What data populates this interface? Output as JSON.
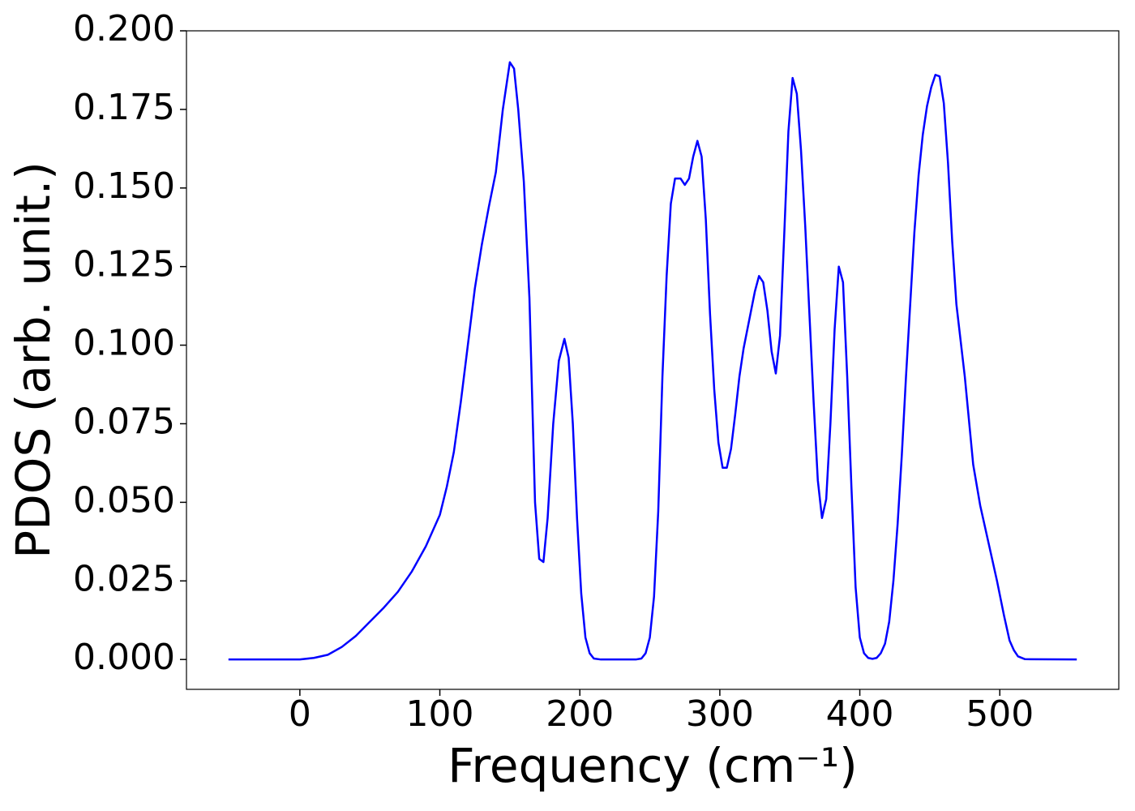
{
  "chart_data": {
    "type": "line",
    "xlabel": "Frequency (cm⁻¹)",
    "ylabel": "PDOS (arb. unit.)",
    "xlim": [
      -81,
      585
    ],
    "ylim": [
      -0.0095,
      0.2
    ],
    "xticks": [
      0,
      100,
      200,
      300,
      400,
      500
    ],
    "yticks": [
      {
        "value": 0,
        "label": "0.000"
      },
      {
        "value": 0.025,
        "label": "0.025"
      },
      {
        "value": 0.05,
        "label": "0.050"
      },
      {
        "value": 0.075,
        "label": "0.075"
      },
      {
        "value": 0.1,
        "label": "0.100"
      },
      {
        "value": 0.125,
        "label": "0.125"
      },
      {
        "value": 0.15,
        "label": "0.150"
      },
      {
        "value": 0.175,
        "label": "0.175"
      },
      {
        "value": 0.2,
        "label": "0.200"
      }
    ],
    "color": "#0000ff",
    "x": [
      -51,
      0,
      10,
      20,
      30,
      40,
      50,
      60,
      70,
      80,
      90,
      100,
      105,
      110,
      115,
      120,
      125,
      130,
      135,
      140,
      145,
      150,
      153,
      156,
      160,
      164,
      168,
      171,
      174,
      177,
      181,
      185,
      189,
      192,
      195,
      198,
      201,
      204,
      207,
      210,
      215,
      240,
      244,
      247,
      250,
      253,
      256,
      259,
      262,
      265,
      268,
      272,
      275,
      278,
      281,
      284,
      287,
      290,
      293,
      296,
      299,
      302,
      305,
      308,
      311,
      314,
      317,
      321,
      325,
      328,
      331,
      334,
      337,
      340,
      343,
      346,
      349,
      352,
      355,
      358,
      361,
      364,
      367,
      370,
      373,
      376,
      379,
      382,
      385,
      388,
      391,
      394,
      397,
      400,
      403,
      406,
      409,
      412,
      415,
      418,
      421,
      424,
      427,
      430,
      433,
      436,
      439,
      442,
      445,
      448,
      451,
      454,
      457,
      460,
      463,
      466,
      469,
      475,
      481,
      486,
      492,
      498,
      503,
      507,
      510,
      513,
      518,
      555
    ],
    "values": [
      0,
      0,
      0.0005,
      0.0015,
      0.004,
      0.0075,
      0.012,
      0.0165,
      0.0215,
      0.028,
      0.036,
      0.046,
      0.055,
      0.066,
      0.082,
      0.1,
      0.118,
      0.132,
      0.144,
      0.155,
      0.175,
      0.19,
      0.188,
      0.175,
      0.152,
      0.115,
      0.05,
      0.032,
      0.031,
      0.045,
      0.075,
      0.095,
      0.102,
      0.096,
      0.075,
      0.045,
      0.021,
      0.007,
      0.002,
      0.0003,
      0,
      0,
      0.0003,
      0.002,
      0.007,
      0.02,
      0.047,
      0.09,
      0.122,
      0.145,
      0.153,
      0.153,
      0.151,
      0.153,
      0.16,
      0.165,
      0.16,
      0.14,
      0.11,
      0.086,
      0.069,
      0.061,
      0.061,
      0.067,
      0.078,
      0.09,
      0.099,
      0.108,
      0.117,
      0.122,
      0.12,
      0.111,
      0.098,
      0.091,
      0.103,
      0.135,
      0.168,
      0.185,
      0.18,
      0.162,
      0.138,
      0.11,
      0.082,
      0.057,
      0.045,
      0.051,
      0.075,
      0.105,
      0.125,
      0.12,
      0.09,
      0.055,
      0.023,
      0.007,
      0.002,
      0.0005,
      0.0002,
      0.0005,
      0.002,
      0.005,
      0.012,
      0.025,
      0.043,
      0.065,
      0.09,
      0.113,
      0.136,
      0.154,
      0.167,
      0.176,
      0.182,
      0.186,
      0.1855,
      0.177,
      0.158,
      0.133,
      0.113,
      0.09,
      0.062,
      0.049,
      0.037,
      0.025,
      0.014,
      0.006,
      0.003,
      0.001,
      0.0001,
      0
    ]
  }
}
